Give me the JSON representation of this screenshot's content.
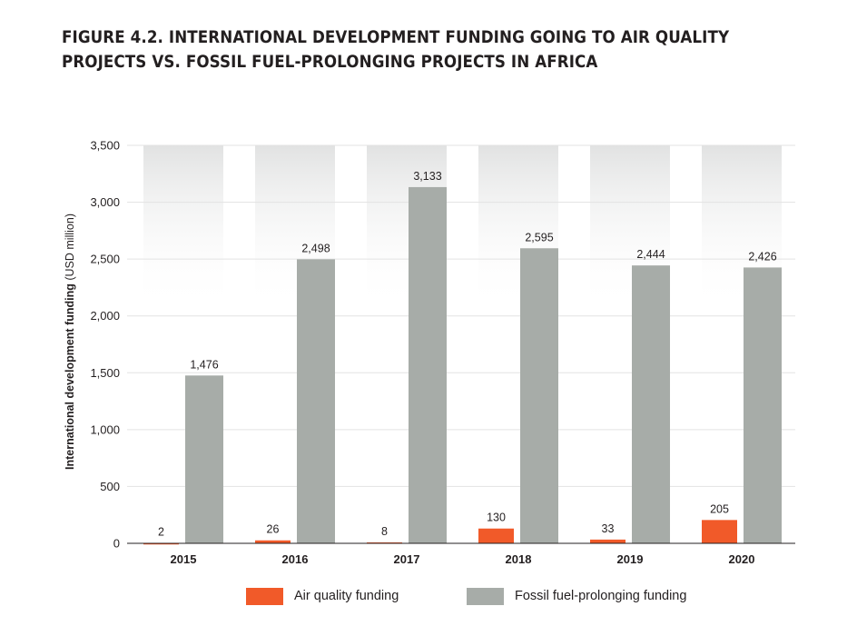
{
  "title": "FIGURE 4.2.  INTERNATIONAL DEVELOPMENT FUNDING GOING TO AIR QUALITY PROJECTS VS. FOSSIL FUEL-PROLONGING PROJECTS IN AFRICA",
  "colors": {
    "air_quality": "#f15a29",
    "fossil": "#a7aca8",
    "grid": "#e3e3e3",
    "axis": "#231f20"
  },
  "chart_data": {
    "type": "bar",
    "categories": [
      "2015",
      "2016",
      "2017",
      "2018",
      "2019",
      "2020"
    ],
    "series": [
      {
        "name": "Air quality funding",
        "values": [
          2,
          26,
          8,
          130,
          33,
          205
        ]
      },
      {
        "name": "Fossil fuel-prolonging funding",
        "values": [
          1476,
          2498,
          3133,
          2595,
          2444,
          2426
        ]
      }
    ],
    "data_labels": [
      [
        "2",
        "26",
        "8",
        "130",
        "33",
        "205"
      ],
      [
        "1,476",
        "2,498",
        "3,133",
        "2,595",
        "2,444",
        "2,426"
      ]
    ],
    "ylabel_bold": "International development funding",
    "ylabel_rest": " (USD million)",
    "xlabel": "",
    "ylim": [
      0,
      3500
    ],
    "yticks": [
      0,
      500,
      1000,
      1500,
      2000,
      2500,
      3000,
      3500
    ],
    "ytick_labels": [
      "0",
      "500",
      "1,000",
      "1,500",
      "2,000",
      "2,500",
      "3,000",
      "3,500"
    ],
    "grid": true,
    "legend_position": "bottom"
  }
}
